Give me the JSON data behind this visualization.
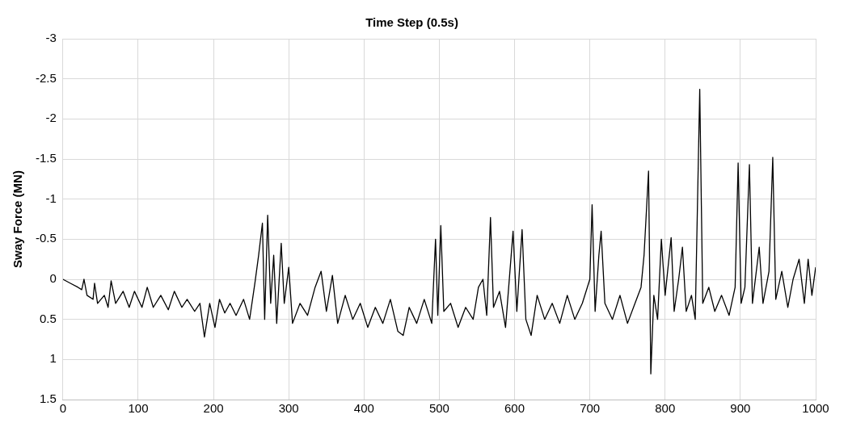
{
  "chart_data": {
    "type": "line",
    "title": "Time Step (0.5s)",
    "ylabel": "Sway Force (MN)",
    "xlim": [
      0,
      1000
    ],
    "xticks": [
      0,
      100,
      200,
      300,
      400,
      500,
      600,
      700,
      800,
      900,
      1000
    ],
    "ylim": [
      1.5,
      -3
    ],
    "yticks": [
      -3,
      -2.5,
      -2,
      -1.5,
      -1,
      -0.5,
      0,
      0.5,
      1,
      1.5
    ],
    "grid": true,
    "legend": false,
    "marker": "none",
    "line_style": "solid",
    "series": [
      {
        "color": "#000000",
        "x": [
          0,
          10,
          20,
          25,
          28,
          32,
          40,
          42,
          46,
          55,
          60,
          64,
          70,
          80,
          88,
          95,
          105,
          112,
          120,
          130,
          140,
          148,
          158,
          165,
          175,
          182,
          188,
          195,
          202,
          208,
          215,
          222,
          230,
          240,
          248,
          255,
          260,
          265,
          268,
          272,
          276,
          280,
          284,
          290,
          294,
          300,
          305,
          315,
          325,
          335,
          343,
          350,
          358,
          365,
          375,
          385,
          395,
          405,
          415,
          425,
          435,
          445,
          452,
          460,
          470,
          480,
          490,
          495,
          498,
          502,
          506,
          515,
          525,
          535,
          545,
          552,
          558,
          563,
          568,
          572,
          580,
          588,
          598,
          603,
          610,
          615,
          622,
          630,
          640,
          650,
          660,
          670,
          680,
          690,
          700,
          703,
          707,
          712,
          715,
          720,
          730,
          740,
          750,
          760,
          768,
          772,
          778,
          781,
          785,
          790,
          795,
          800,
          808,
          812,
          818,
          823,
          828,
          835,
          840,
          846,
          850,
          858,
          866,
          875,
          885,
          893,
          897,
          901,
          906,
          912,
          916,
          925,
          930,
          938,
          943,
          947,
          955,
          963,
          970,
          978,
          985,
          990,
          995,
          1000
        ],
        "values": [
          0,
          0.05,
          0.1,
          0.13,
          0.0,
          0.2,
          0.25,
          0.05,
          0.3,
          0.2,
          0.35,
          0.02,
          0.3,
          0.15,
          0.35,
          0.15,
          0.35,
          0.1,
          0.35,
          0.2,
          0.38,
          0.15,
          0.35,
          0.25,
          0.4,
          0.3,
          0.72,
          0.3,
          0.6,
          0.25,
          0.42,
          0.3,
          0.45,
          0.25,
          0.5,
          0.05,
          -0.3,
          -0.7,
          0.5,
          -0.8,
          0.3,
          -0.3,
          0.55,
          -0.45,
          0.3,
          -0.15,
          0.55,
          0.3,
          0.45,
          0.1,
          -0.1,
          0.4,
          -0.05,
          0.55,
          0.2,
          0.5,
          0.3,
          0.6,
          0.35,
          0.55,
          0.25,
          0.65,
          0.7,
          0.35,
          0.55,
          0.25,
          0.55,
          -0.5,
          0.45,
          -0.67,
          0.4,
          0.3,
          0.6,
          0.35,
          0.5,
          0.1,
          0.0,
          0.45,
          -0.77,
          0.35,
          0.15,
          0.6,
          -0.6,
          0.4,
          -0.62,
          0.5,
          0.7,
          0.2,
          0.5,
          0.3,
          0.55,
          0.2,
          0.5,
          0.3,
          0.0,
          -0.93,
          0.4,
          -0.3,
          -0.6,
          0.3,
          0.5,
          0.2,
          0.55,
          0.3,
          0.1,
          -0.3,
          -1.35,
          1.18,
          0.2,
          0.5,
          -0.5,
          0.2,
          -0.52,
          0.4,
          0.0,
          -0.4,
          0.4,
          0.2,
          0.5,
          -2.37,
          0.3,
          0.1,
          0.4,
          0.2,
          0.45,
          0.1,
          -1.45,
          0.3,
          0.1,
          -1.43,
          0.3,
          -0.4,
          0.3,
          -0.1,
          -1.52,
          0.25,
          -0.1,
          0.35,
          0.0,
          -0.25,
          0.3,
          -0.25,
          0.2,
          -0.15
        ]
      }
    ]
  }
}
